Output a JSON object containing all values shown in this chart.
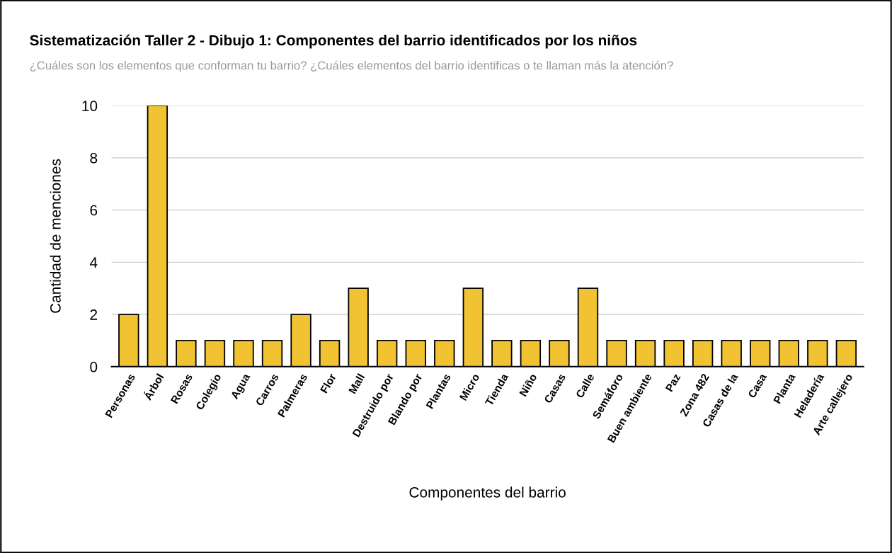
{
  "chart_data": {
    "type": "bar",
    "title": "Sistematización Taller 2 - Dibujo 1: Componentes del barrio identificados por los niños",
    "subtitle": "¿Cuáles son los elementos que conforman tu barrio? ¿Cuáles elementos del barrio identificas o te llaman más la atención?",
    "xlabel": "Componentes del barrio",
    "ylabel": "Cantidad de menciones",
    "categories": [
      "Personas",
      "Árbol",
      "Rosas",
      "Colegio",
      "Agua",
      "Carros",
      "Palmeras",
      "Flor",
      "Mall",
      "Destruido por",
      "Blando por",
      "Plantas",
      "Micro",
      "Tienda",
      "Niño",
      "Casas",
      "Calle",
      "Semáforo",
      "Buen ambiente",
      "Paz",
      "Zona 482",
      "Casas de la",
      "Casa",
      "Planta",
      "Heladería",
      "Arte callejero"
    ],
    "values": [
      2,
      10,
      1,
      1,
      1,
      1,
      2,
      1,
      3,
      1,
      1,
      1,
      3,
      1,
      1,
      1,
      3,
      1,
      1,
      1,
      1,
      1,
      1,
      1,
      1,
      1
    ],
    "color": "#f1c232",
    "ylim": [
      0,
      10
    ],
    "yticks": [
      0,
      2,
      4,
      6,
      8,
      10
    ],
    "grid": "y",
    "legend": false
  }
}
